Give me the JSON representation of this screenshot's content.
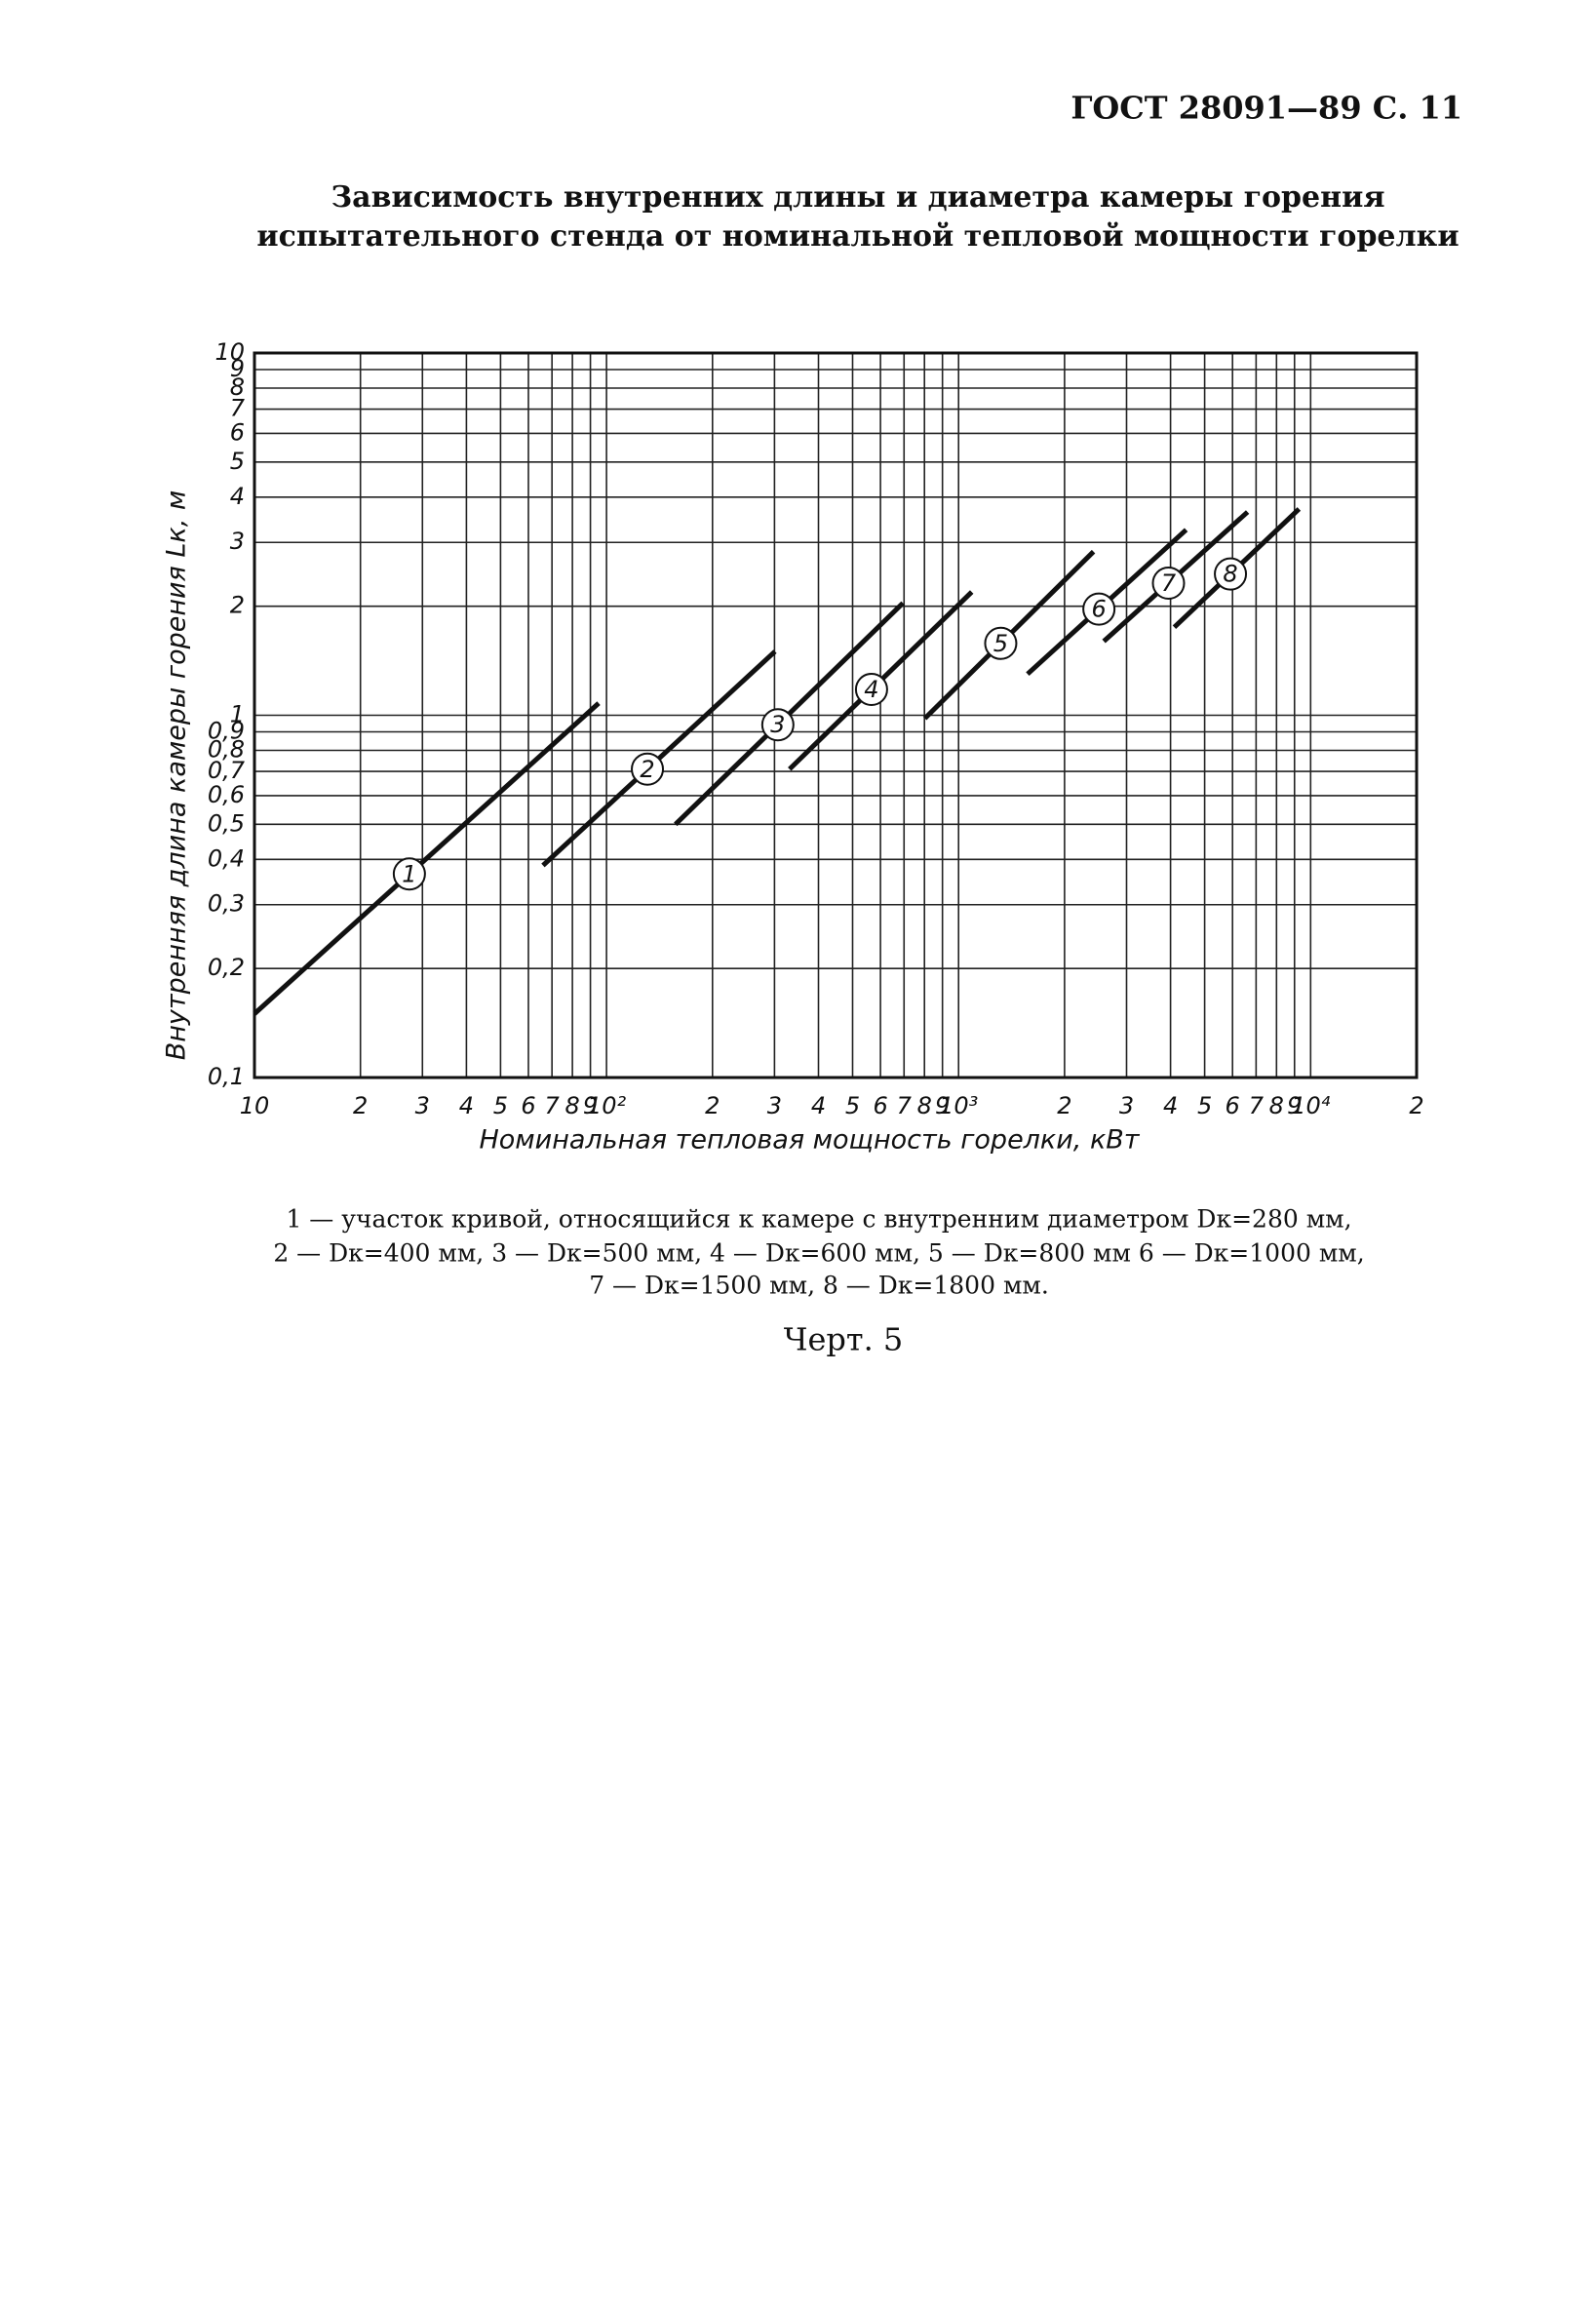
{
  "header": "ГОСТ 28091—89 С. 11",
  "chart_data": {
    "type": "line",
    "title": [
      "Зависимость внутренних длины и диаметра камеры горения",
      "испытательного стенда от номинальной тепловой мощности горелки"
    ],
    "x_label": "Номинальная тепловая мощность горелки, кВт",
    "y_label": "Внутренняя длина камеры горения Lк, м",
    "xscale": "log",
    "yscale": "log",
    "grid": true,
    "xlim": [
      10,
      20000
    ],
    "ylim": [
      0.1,
      10
    ],
    "xticks": [
      10,
      {
        "value": 20,
        "label": "2"
      },
      {
        "value": 30,
        "label": "3"
      },
      {
        "value": 40,
        "label": "4"
      },
      {
        "value": 50,
        "label": "5"
      },
      {
        "value": 60,
        "label": "6"
      },
      {
        "value": 70,
        "label": "7"
      },
      {
        "value": 80,
        "label": "8"
      },
      {
        "value": 90,
        "label": "9"
      },
      {
        "value": 100,
        "label": "10²"
      },
      {
        "value": 200,
        "label": "2"
      },
      {
        "value": 300,
        "label": "3"
      },
      {
        "value": 400,
        "label": "4"
      },
      {
        "value": 500,
        "label": "5"
      },
      {
        "value": 600,
        "label": "6"
      },
      {
        "value": 700,
        "label": "7"
      },
      {
        "value": 800,
        "label": "8"
      },
      {
        "value": 900,
        "label": "9"
      },
      {
        "value": 1000,
        "label": "10³"
      },
      {
        "value": 2000,
        "label": "2"
      },
      {
        "value": 3000,
        "label": "3"
      },
      {
        "value": 4000,
        "label": "4"
      },
      {
        "value": 5000,
        "label": "5"
      },
      {
        "value": 6000,
        "label": "6"
      },
      {
        "value": 7000,
        "label": "7"
      },
      {
        "value": 8000,
        "label": "8"
      },
      {
        "value": 9000,
        "label": "9"
      },
      {
        "value": 10000,
        "label": "10⁴"
      },
      {
        "value": 20000,
        "label": "2"
      }
    ],
    "yticks": [
      {
        "value": 0.1,
        "label": "0,1"
      },
      {
        "value": 0.2,
        "label": "0,2"
      },
      {
        "value": 0.3,
        "label": "0,3"
      },
      {
        "value": 0.4,
        "label": "0,4"
      },
      {
        "value": 0.5,
        "label": "0,5"
      },
      {
        "value": 0.6,
        "label": "0,6"
      },
      {
        "value": 0.7,
        "label": "0,7"
      },
      {
        "value": 0.8,
        "label": "0,8"
      },
      {
        "value": 0.9,
        "label": "0,9"
      },
      1,
      2,
      3,
      4,
      5,
      6,
      7,
      8,
      9,
      10
    ],
    "series": [
      {
        "name": "1",
        "color": "#111111",
        "x": [
          10,
          95
        ],
        "values": [
          0.15,
          1.08
        ]
      },
      {
        "name": "2",
        "color": "#111111",
        "x": [
          66,
          301
        ],
        "values": [
          0.385,
          1.5
        ]
      },
      {
        "name": "3",
        "color": "#111111",
        "x": [
          157,
          695
        ],
        "values": [
          0.5,
          2.04
        ]
      },
      {
        "name": "4",
        "color": "#111111",
        "x": [
          331,
          1090
        ],
        "values": [
          0.71,
          2.19
        ]
      },
      {
        "name": "5",
        "color": "#111111",
        "x": [
          802,
          2417
        ],
        "values": [
          0.98,
          2.83
        ]
      },
      {
        "name": "6",
        "color": "#111111",
        "x": [
          1570,
          4430
        ],
        "values": [
          1.3,
          3.25
        ]
      },
      {
        "name": "7",
        "color": "#111111",
        "x": [
          2585,
          6620
        ],
        "values": [
          1.6,
          3.64
        ]
      },
      {
        "name": "8",
        "color": "#111111",
        "x": [
          4100,
          9270
        ],
        "values": [
          1.75,
          3.71
        ]
      }
    ],
    "caption": [
      "1 — участок кривой, относящийся к камере с внутренним диаметром Dк=280 мм,",
      "2 — Dк=400 мм, 3 — Dк=500 мм, 4 — Dк=600 мм, 5 — Dк=800 мм 6 — Dк=1000 мм,",
      "7 — Dк=1500 мм, 8 — Dк=1800 мм."
    ],
    "figure_label": "Черт. 5"
  }
}
